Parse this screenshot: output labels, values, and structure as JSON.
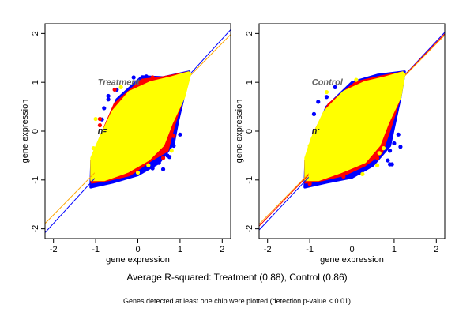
{
  "caption": "Average R-squared: Treatment (0.88), Control (0.86)",
  "footnote": "Genes detected at least one chip were plotted (detection p-value < 0.01)",
  "chart_data": [
    {
      "type": "scatter",
      "label": "Treatment",
      "label_extra": "n=",
      "xlabel": "gene expression",
      "ylabel": "gene expression",
      "xlim": [
        -2.2,
        2.2
      ],
      "ylim": [
        -2.2,
        2.2
      ],
      "xticks": [
        "-2",
        "-1",
        "0",
        "1",
        "2"
      ],
      "yticks": [
        "-2",
        "-1",
        "0",
        "1",
        "2"
      ],
      "colors": {
        "blue": "#0000ff",
        "red": "#ff0000",
        "yellow": "#ffff00",
        "orange": "#ffa500",
        "label": "#666666"
      },
      "series": [
        {
          "color": "blue",
          "hull": [
            [
              -1.12,
              -1.15
            ],
            [
              -1.1,
              -0.6
            ],
            [
              -0.8,
              0.0
            ],
            [
              -0.5,
              0.65
            ],
            [
              0.1,
              1.12
            ],
            [
              0.6,
              1.1
            ],
            [
              1.22,
              1.22
            ],
            [
              1.1,
              0.75
            ],
            [
              0.95,
              0.2
            ],
            [
              0.85,
              -0.25
            ],
            [
              0.5,
              -0.65
            ],
            [
              0.0,
              -0.9
            ],
            [
              -0.6,
              -1.05
            ]
          ],
          "points": [
            [
              0.2,
              1.12
            ],
            [
              -0.1,
              1.1
            ],
            [
              -0.5,
              0.85
            ],
            [
              -0.7,
              0.72
            ],
            [
              -0.7,
              0.65
            ],
            [
              -0.8,
              0.47
            ],
            [
              -0.85,
              0.24
            ],
            [
              0.95,
              0.35
            ],
            [
              0.9,
              0.15
            ],
            [
              1.0,
              -0.07
            ],
            [
              0.85,
              -0.3
            ],
            [
              0.7,
              -0.5
            ],
            [
              0.75,
              -0.53
            ],
            [
              0.5,
              -0.65
            ],
            [
              0.35,
              -0.76
            ],
            [
              0.1,
              -0.8
            ],
            [
              0.6,
              -0.78
            ],
            [
              -0.4,
              -0.85
            ]
          ]
        },
        {
          "color": "red",
          "hull": [
            [
              -1.1,
              -1.05
            ],
            [
              -1.1,
              -0.6
            ],
            [
              -0.85,
              -0.05
            ],
            [
              -0.55,
              0.55
            ],
            [
              0.1,
              1.05
            ],
            [
              0.6,
              1.1
            ],
            [
              1.2,
              1.2
            ],
            [
              1.05,
              0.65
            ],
            [
              0.85,
              0.1
            ],
            [
              0.7,
              -0.4
            ],
            [
              0.3,
              -0.6
            ],
            [
              -0.2,
              -0.9
            ],
            [
              -0.7,
              -1.0
            ]
          ],
          "points": [
            [
              0.35,
              1.1
            ],
            [
              -0.55,
              0.85
            ],
            [
              -0.9,
              0.25
            ],
            [
              -0.9,
              0.12
            ],
            [
              0.85,
              -0.1
            ],
            [
              0.6,
              -0.55
            ]
          ]
        },
        {
          "color": "yellow",
          "hull": [
            [
              -1.1,
              -1.0
            ],
            [
              -1.1,
              -0.55
            ],
            [
              -0.9,
              -0.15
            ],
            [
              -0.6,
              0.4
            ],
            [
              -0.2,
              0.8
            ],
            [
              0.3,
              1.0
            ],
            [
              0.8,
              1.1
            ],
            [
              1.2,
              1.2
            ],
            [
              1.05,
              0.7
            ],
            [
              0.75,
              0.15
            ],
            [
              0.55,
              -0.3
            ],
            [
              0.2,
              -0.6
            ],
            [
              -0.3,
              -0.85
            ],
            [
              -0.8,
              -1.0
            ]
          ],
          "points": [
            [
              -1.0,
              0.25
            ],
            [
              -1.05,
              -0.35
            ],
            [
              -0.4,
              0.9
            ],
            [
              0.0,
              -0.85
            ],
            [
              0.25,
              -0.7
            ],
            [
              0.8,
              -0.4
            ]
          ]
        }
      ],
      "fit_lines": [
        {
          "color": "blue",
          "slope": 0.945,
          "intercept": 0.0
        },
        {
          "color": "orange",
          "slope": 0.88,
          "intercept": 0.045
        }
      ]
    },
    {
      "type": "scatter",
      "label": "Control",
      "label_extra": "n=",
      "xlabel": "gene expression",
      "ylabel": "gene expression",
      "xlim": [
        -2.2,
        2.2
      ],
      "ylim": [
        -2.2,
        2.2
      ],
      "xticks": [
        "-2",
        "-1",
        "0",
        "1",
        "2"
      ],
      "yticks": [
        "-2",
        "-1",
        "0",
        "1",
        "2"
      ],
      "colors": {
        "blue": "#0000ff",
        "red": "#ff0000",
        "yellow": "#ffff00",
        "orange": "#ffa500",
        "label": "#666666"
      },
      "series": [
        {
          "color": "blue",
          "hull": [
            [
              -1.12,
              -1.15
            ],
            [
              -1.1,
              -0.6
            ],
            [
              -0.9,
              -0.1
            ],
            [
              -0.6,
              0.5
            ],
            [
              0.0,
              1.0
            ],
            [
              0.6,
              1.15
            ],
            [
              1.25,
              1.22
            ],
            [
              1.15,
              0.7
            ],
            [
              1.0,
              0.1
            ],
            [
              0.9,
              -0.3
            ],
            [
              0.5,
              -0.7
            ],
            [
              0.0,
              -0.95
            ],
            [
              -0.6,
              -1.05
            ]
          ],
          "points": [
            [
              -0.8,
              0.6
            ],
            [
              -0.9,
              0.35
            ],
            [
              -0.6,
              0.7
            ],
            [
              -0.4,
              0.9
            ],
            [
              1.1,
              -0.07
            ],
            [
              1.15,
              -0.32
            ],
            [
              1.0,
              -0.25
            ],
            [
              0.9,
              -0.4
            ],
            [
              0.85,
              -0.6
            ],
            [
              0.95,
              -0.68
            ],
            [
              0.9,
              -0.68
            ],
            [
              0.2,
              -0.85
            ],
            [
              0.2,
              -0.75
            ],
            [
              0.05,
              -0.83
            ],
            [
              0.5,
              -0.65
            ],
            [
              1.0,
              1.15
            ]
          ]
        },
        {
          "color": "red",
          "hull": [
            [
              -1.1,
              -1.05
            ],
            [
              -1.1,
              -0.6
            ],
            [
              -0.9,
              -0.05
            ],
            [
              -0.55,
              0.55
            ],
            [
              0.1,
              1.0
            ],
            [
              0.7,
              1.12
            ],
            [
              1.2,
              1.2
            ],
            [
              1.1,
              0.6
            ],
            [
              0.9,
              0.05
            ],
            [
              0.7,
              -0.45
            ],
            [
              0.3,
              -0.7
            ],
            [
              -0.2,
              -0.9
            ],
            [
              -0.7,
              -1.0
            ]
          ],
          "points": [
            [
              -0.35,
              -0.9
            ],
            [
              -0.2,
              -0.93
            ],
            [
              0.6,
              -0.55
            ],
            [
              0.7,
              -0.3
            ],
            [
              0.25,
              1.0
            ],
            [
              -1.0,
              -1.08
            ]
          ]
        },
        {
          "color": "yellow",
          "hull": [
            [
              -1.1,
              -1.0
            ],
            [
              -1.1,
              -0.55
            ],
            [
              -0.95,
              -0.15
            ],
            [
              -0.65,
              0.4
            ],
            [
              -0.2,
              0.8
            ],
            [
              0.3,
              1.0
            ],
            [
              0.8,
              1.1
            ],
            [
              1.2,
              1.2
            ],
            [
              1.1,
              0.7
            ],
            [
              0.8,
              0.15
            ],
            [
              0.6,
              -0.3
            ],
            [
              0.25,
              -0.65
            ],
            [
              -0.3,
              -0.85
            ],
            [
              -0.8,
              -1.0
            ]
          ],
          "points": [
            [
              0.1,
              1.05
            ],
            [
              -0.6,
              0.8
            ],
            [
              -1.0,
              -0.3
            ],
            [
              0.25,
              -0.88
            ],
            [
              0.6,
              -0.7
            ],
            [
              0.65,
              -0.45
            ],
            [
              0.75,
              -0.35
            ]
          ]
        }
      ],
      "fit_lines": [
        {
          "color": "blue",
          "slope": 0.92,
          "intercept": 0.0
        },
        {
          "color": "red",
          "slope": 0.895,
          "intercept": 0.025
        },
        {
          "color": "orange",
          "slope": 0.88,
          "intercept": 0.03
        }
      ]
    }
  ]
}
